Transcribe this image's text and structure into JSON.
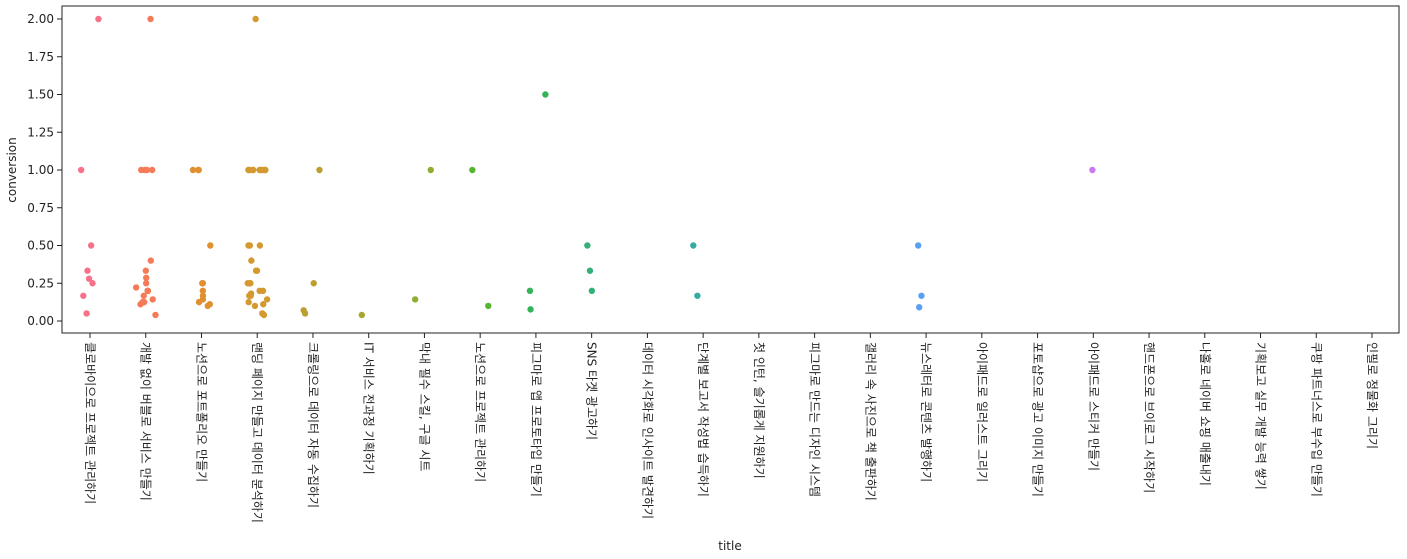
{
  "chart_data": {
    "type": "scatter",
    "style": "strip",
    "xlabel": "title",
    "ylabel": "conversion",
    "ylim": [
      -0.07,
      2.1
    ],
    "yticks": [
      "0.00",
      "0.25",
      "0.50",
      "0.75",
      "1.00",
      "1.25",
      "1.50",
      "1.75",
      "2.00"
    ],
    "grid": false,
    "categories": [
      "클로바이으로 프로젝트 관리하기",
      "개발 없이 버블로 서비스 만들기",
      "노션으로 포트폴리오 만들기",
      "랜딩 페이지 만들고 데이터 분석하기",
      "크롤링으로 데이터 자동 수집하기",
      "IT 서비스 전과정 기획하기",
      "막내 필수 스킬, 구글 시트",
      "노션으로 프로젝트 관리하기",
      "피그마로 앱 프로토타입 만들기",
      "SNS 타겟 광고하기",
      "데이터 시각화로 인사이트 발견하기",
      "단계별 보고서 작성법 습득하기",
      "첫 인턴, 슬기롭게 지원하기",
      "피그마로 만드는 디자인 시스템",
      "갤러리 속 사진으로 책 출판하기",
      "뉴스레터로 콘텐츠 발행하기",
      "아이패드로 일러스트 그리기",
      "포토샵으로 광고 이미지 만들기",
      "아이패드로 스티커 만들기",
      "핸드폰으로 브이로그 시작하기",
      "나홀로 네이버 쇼핑 매출내기",
      "기획보고 실무 개발 능력 쌓기",
      "쿠팡 파트너스로 부수입 만들기",
      "인필로 정물화 그리기"
    ],
    "colors": [
      "#f77189",
      "#f57b58",
      "#e08f31",
      "#d49a31",
      "#bba031",
      "#a7a631",
      "#8fad31",
      "#54b531",
      "#34b357",
      "#35b178",
      "#36ae8e",
      "#36aca0",
      "#37a9b4",
      "#39a6c4",
      "#3ca3db",
      "#57a0f3",
      "#8e94f4",
      "#af87f4",
      "#cc7af4",
      "#f465e1",
      "#f56ac0",
      "#f56ea8",
      "#f5708f",
      "#f47278"
    ],
    "points": [
      [
        0,
        2.0
      ],
      [
        0,
        1.0
      ],
      [
        0,
        0.5
      ],
      [
        0,
        0.333
      ],
      [
        0,
        0.28
      ],
      [
        0,
        0.25
      ],
      [
        0,
        0.167
      ],
      [
        0,
        0.05
      ],
      [
        1,
        2.0
      ],
      [
        1,
        1.0
      ],
      [
        1,
        1.0
      ],
      [
        1,
        1.0
      ],
      [
        1,
        1.0
      ],
      [
        1,
        0.4
      ],
      [
        1,
        0.333
      ],
      [
        1,
        0.286
      ],
      [
        1,
        0.25
      ],
      [
        1,
        0.222
      ],
      [
        1,
        0.2
      ],
      [
        1,
        0.2
      ],
      [
        1,
        0.167
      ],
      [
        1,
        0.143
      ],
      [
        1,
        0.125
      ],
      [
        1,
        0.125
      ],
      [
        1,
        0.111
      ],
      [
        1,
        0.04
      ],
      [
        2,
        1.0
      ],
      [
        2,
        1.0
      ],
      [
        2,
        1.0
      ],
      [
        2,
        0.5
      ],
      [
        2,
        0.25
      ],
      [
        2,
        0.25
      ],
      [
        2,
        0.2
      ],
      [
        2,
        0.167
      ],
      [
        2,
        0.143
      ],
      [
        2,
        0.125
      ],
      [
        2,
        0.111
      ],
      [
        2,
        0.1
      ],
      [
        3,
        2.0
      ],
      [
        3,
        1.0
      ],
      [
        3,
        1.0
      ],
      [
        3,
        1.0
      ],
      [
        3,
        1.0
      ],
      [
        3,
        1.0
      ],
      [
        3,
        1.0
      ],
      [
        3,
        1.0
      ],
      [
        3,
        1.0
      ],
      [
        3,
        1.0
      ],
      [
        3,
        1.0
      ],
      [
        3,
        0.5
      ],
      [
        3,
        0.5
      ],
      [
        3,
        0.5
      ],
      [
        3,
        0.4
      ],
      [
        3,
        0.333
      ],
      [
        3,
        0.333
      ],
      [
        3,
        0.25
      ],
      [
        3,
        0.25
      ],
      [
        3,
        0.25
      ],
      [
        3,
        0.2
      ],
      [
        3,
        0.2
      ],
      [
        3,
        0.182
      ],
      [
        3,
        0.167
      ],
      [
        3,
        0.167
      ],
      [
        3,
        0.143
      ],
      [
        3,
        0.125
      ],
      [
        3,
        0.111
      ],
      [
        3,
        0.1
      ],
      [
        3,
        0.05
      ],
      [
        3,
        0.04
      ],
      [
        4,
        1.0
      ],
      [
        4,
        0.25
      ],
      [
        4,
        0.071
      ],
      [
        4,
        0.05
      ],
      [
        5,
        0.04
      ],
      [
        6,
        1.0
      ],
      [
        6,
        0.143
      ],
      [
        7,
        1.0
      ],
      [
        7,
        0.1
      ],
      [
        8,
        1.5
      ],
      [
        8,
        0.2
      ],
      [
        8,
        0.077
      ],
      [
        9,
        0.5
      ],
      [
        9,
        0.333
      ],
      [
        9,
        0.2
      ],
      [
        11,
        0.5
      ],
      [
        11,
        0.167
      ],
      [
        15,
        0.5
      ],
      [
        15,
        0.167
      ],
      [
        15,
        0.091
      ],
      [
        18,
        1.0
      ]
    ]
  }
}
